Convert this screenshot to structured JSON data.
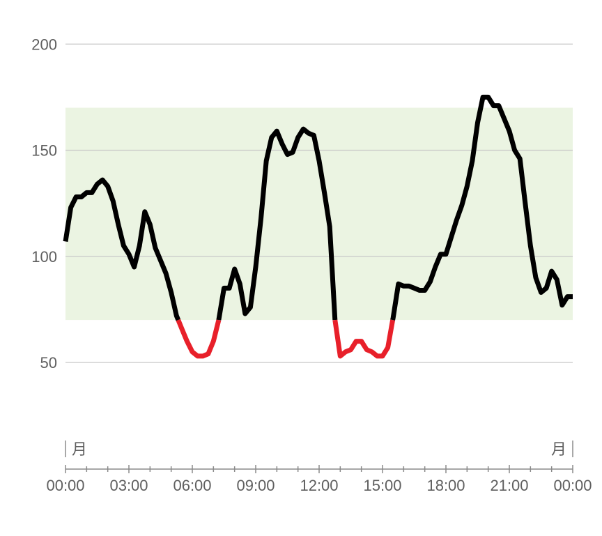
{
  "chart_data": {
    "type": "line",
    "title": "",
    "xlabel": "",
    "ylabel": "",
    "xlim": [
      0,
      24
    ],
    "ylim": [
      20,
      200
    ],
    "y_ticks": [
      50,
      100,
      150,
      200
    ],
    "x_ticks": [
      "00:00",
      "03:00",
      "06:00",
      "09:00",
      "12:00",
      "15:00",
      "18:00",
      "21:00",
      "00:00"
    ],
    "x_tick_hours": [
      0,
      3,
      6,
      9,
      12,
      15,
      18,
      21,
      24
    ],
    "day_labels": {
      "start": "月",
      "end": "月"
    },
    "target_range": [
      70,
      170
    ],
    "low_threshold": 70,
    "grid": true,
    "colors": {
      "in_range_fill": "#ebf4e2",
      "line": "#000000",
      "low_line": "#e8202a",
      "grid": "#c8c8c8",
      "text": "#5f5f5f"
    },
    "series": [
      {
        "x": [
          0,
          0.25,
          0.5,
          0.75,
          1.0,
          1.25,
          1.5,
          1.75,
          2.0,
          2.25,
          2.5,
          2.75,
          3.0,
          3.25,
          3.5,
          3.75,
          4.0,
          4.25,
          4.5,
          4.75,
          5.0,
          5.25,
          5.5,
          5.75,
          6.0,
          6.25,
          6.5,
          6.75,
          7.0,
          7.25,
          7.5,
          7.75,
          8.0,
          8.25,
          8.5,
          8.75,
          9.0,
          9.25,
          9.5,
          9.75,
          10.0,
          10.25,
          10.5,
          10.75,
          11.0,
          11.25,
          11.5,
          11.75,
          12.0,
          12.25,
          12.5,
          12.75,
          13.0,
          13.25,
          13.5,
          13.75,
          14.0,
          14.25,
          14.5,
          14.75,
          15.0,
          15.25,
          15.5,
          15.75,
          16.0,
          16.25,
          16.5,
          16.75,
          17.0,
          17.25,
          17.5,
          17.75,
          18.0,
          18.25,
          18.5,
          18.75,
          19.0,
          19.25,
          19.5,
          19.75,
          20.0,
          20.25,
          20.5,
          20.75,
          21.0,
          21.25,
          21.5,
          21.75,
          22.0,
          22.25,
          22.5,
          22.75,
          23.0,
          23.25,
          23.5,
          23.75,
          24.0
        ],
        "y": [
          107,
          123,
          128,
          128,
          130,
          130,
          134,
          136,
          133,
          126,
          115,
          105,
          101,
          95,
          105,
          121,
          115,
          104,
          98,
          92,
          83,
          72,
          66,
          60,
          55,
          53,
          53,
          54,
          60,
          70,
          85,
          85,
          94,
          87,
          73,
          76,
          95,
          118,
          145,
          156,
          159,
          153,
          148,
          149,
          156,
          160,
          158,
          157,
          145,
          130,
          114,
          70,
          53,
          55,
          56,
          60,
          60,
          56,
          55,
          53,
          53,
          57,
          71,
          87,
          86,
          86,
          85,
          84,
          84,
          88,
          95,
          101,
          101,
          109,
          117,
          124,
          133,
          145,
          163,
          175,
          175,
          171,
          171,
          165,
          159,
          150,
          146,
          125,
          105,
          90,
          83,
          85,
          93,
          89,
          77,
          81,
          81
        ]
      }
    ]
  }
}
